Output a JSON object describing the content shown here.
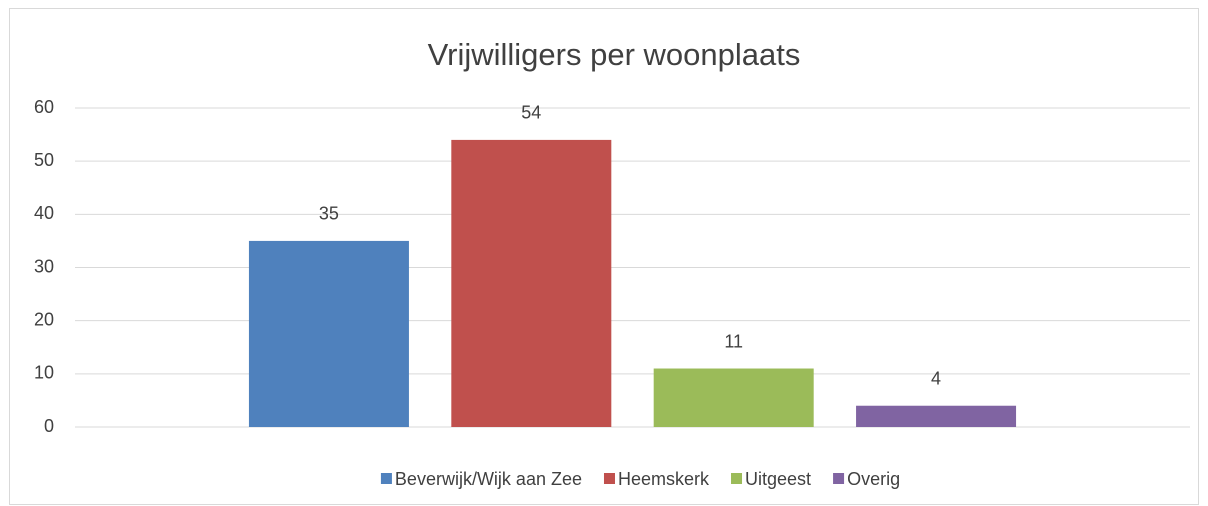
{
  "chart_data": {
    "type": "bar",
    "title": "Vrijwilligers per woonplaats",
    "categories": [
      null
    ],
    "series": [
      {
        "name": "Beverwijk/Wijk aan Zee",
        "color": "#4f81bd",
        "values": [
          35
        ]
      },
      {
        "name": "Heemskerk",
        "color": "#c0504d",
        "values": [
          54
        ]
      },
      {
        "name": "Uitgeest",
        "color": "#9bbb59",
        "values": [
          11
        ]
      },
      {
        "name": "Overig",
        "color": "#8064a2",
        "values": [
          4
        ]
      }
    ],
    "ylim": [
      0,
      60
    ],
    "yticks": [
      0,
      10,
      20,
      30,
      40,
      50,
      60
    ],
    "grid": true,
    "legend": "bottom"
  }
}
